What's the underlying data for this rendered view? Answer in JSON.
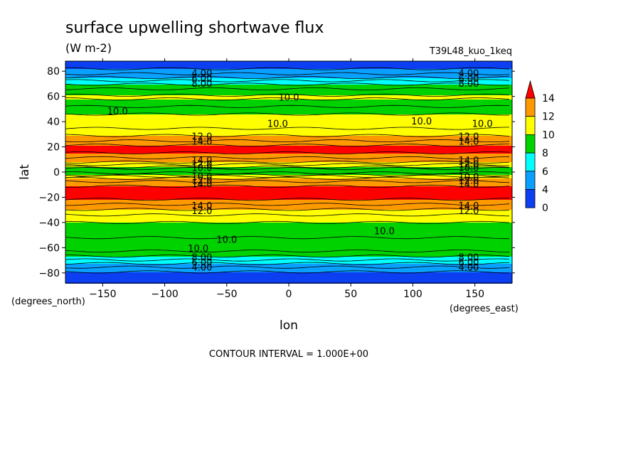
{
  "colors": {
    "band_0_4": "#0c3ff2",
    "band_4_6": "#0aa0ff",
    "band_6_8": "#00ffff",
    "band_8_10": "#00d200",
    "band_10_12": "#ffff00",
    "band_12_14": "#ff9900",
    "band_14_up": "#ff0000",
    "contour_line": "#000000"
  },
  "chart_data": {
    "type": "heatmap",
    "title": "surface upwelling shortwave flux",
    "units": "(W m-2)",
    "run_label": "T39L48_kuo_1keq",
    "xlabel": "lon",
    "ylabel": "lat",
    "x_units_note": "(degrees_east)",
    "y_units_note": "(degrees_north)",
    "footer": "CONTOUR INTERVAL = 1.000E+00",
    "xlim": [
      -180,
      180
    ],
    "ylim": [
      -88,
      88
    ],
    "x_ticks": [
      -150,
      -100,
      -50,
      0,
      50,
      100,
      150
    ],
    "y_ticks": [
      80,
      60,
      40,
      20,
      0,
      -20,
      -40,
      -60,
      -80
    ],
    "colorbar": {
      "levels": [
        0,
        4,
        6,
        8,
        10,
        12,
        14
      ],
      "labels": [
        "14",
        "12",
        "10",
        "8",
        "6",
        "4",
        "0"
      ],
      "extend": "max"
    },
    "zonal_profile": {
      "lat": [
        88,
        84,
        80,
        76,
        72,
        68,
        64,
        60,
        56,
        52,
        48,
        44,
        40,
        36,
        32,
        28,
        24,
        20,
        16,
        12,
        8,
        4,
        2,
        0,
        -2,
        -4,
        -8,
        -12,
        -16,
        -20,
        -24,
        -28,
        -32,
        -36,
        -40,
        -44,
        -48,
        -52,
        -56,
        -60,
        -64,
        -68,
        -72,
        -76,
        -80,
        -84,
        -88
      ],
      "flux": [
        3.0,
        3.6,
        4.4,
        5.6,
        7.2,
        8.6,
        9.4,
        10.2,
        9.8,
        9.0,
        9.6,
        10.4,
        10.4,
        10.8,
        11.4,
        12.2,
        13.2,
        14.4,
        14.2,
        13.2,
        12.0,
        10.0,
        8.4,
        8.6,
        9.8,
        11.6,
        13.2,
        14.2,
        14.8,
        14.4,
        13.4,
        12.4,
        11.4,
        10.6,
        10.0,
        9.6,
        9.8,
        10.0,
        9.6,
        9.4,
        8.8,
        7.6,
        6.2,
        4.8,
        3.8,
        3.4,
        3.2
      ]
    },
    "contour_labels": [
      {
        "text": "4.00",
        "lon": -70,
        "lat": 78
      },
      {
        "text": "6.00",
        "lon": -70,
        "lat": 74
      },
      {
        "text": "8.00",
        "lon": -70,
        "lat": 70
      },
      {
        "text": "4.00",
        "lon": 145,
        "lat": 78
      },
      {
        "text": "6.00",
        "lon": 145,
        "lat": 74
      },
      {
        "text": "8.00",
        "lon": 145,
        "lat": 70
      },
      {
        "text": "10.0",
        "lon": -138,
        "lat": 48
      },
      {
        "text": "10.0",
        "lon": 0,
        "lat": 59
      },
      {
        "text": "10.0",
        "lon": -9,
        "lat": 38
      },
      {
        "text": "10.0",
        "lon": 107,
        "lat": 40
      },
      {
        "text": "10.0",
        "lon": 156,
        "lat": 38
      },
      {
        "text": "12.0",
        "lon": -70,
        "lat": 28
      },
      {
        "text": "14.0",
        "lon": -70,
        "lat": 24
      },
      {
        "text": "12.0",
        "lon": 145,
        "lat": 28
      },
      {
        "text": "14.0",
        "lon": 145,
        "lat": 24
      },
      {
        "text": "14.0",
        "lon": -70,
        "lat": 9
      },
      {
        "text": "12.0",
        "lon": -70,
        "lat": 6
      },
      {
        "text": "10.0",
        "lon": -70,
        "lat": 3
      },
      {
        "text": "10.0",
        "lon": -70,
        "lat": -4
      },
      {
        "text": "12.0",
        "lon": -70,
        "lat": -7
      },
      {
        "text": "14.0",
        "lon": -70,
        "lat": -10
      },
      {
        "text": "14.0",
        "lon": 145,
        "lat": 9
      },
      {
        "text": "12.0",
        "lon": 145,
        "lat": 6
      },
      {
        "text": "10.0",
        "lon": 145,
        "lat": 3
      },
      {
        "text": "10.0",
        "lon": 145,
        "lat": -4
      },
      {
        "text": "12.0",
        "lon": 145,
        "lat": -7
      },
      {
        "text": "14.0",
        "lon": 145,
        "lat": -10
      },
      {
        "text": "14.0",
        "lon": -70,
        "lat": -27
      },
      {
        "text": "12.0",
        "lon": -70,
        "lat": -31
      },
      {
        "text": "14.0",
        "lon": 145,
        "lat": -27
      },
      {
        "text": "12.0",
        "lon": 145,
        "lat": -31
      },
      {
        "text": "10.0",
        "lon": -50,
        "lat": -54
      },
      {
        "text": "10.0",
        "lon": -73,
        "lat": -61
      },
      {
        "text": "10.0",
        "lon": 77,
        "lat": -47
      },
      {
        "text": "8.00",
        "lon": -70,
        "lat": -68
      },
      {
        "text": "6.00",
        "lon": -70,
        "lat": -72
      },
      {
        "text": "4.00",
        "lon": -70,
        "lat": -76
      },
      {
        "text": "8.00",
        "lon": 145,
        "lat": -68
      },
      {
        "text": "6.00",
        "lon": 145,
        "lat": -72
      },
      {
        "text": "4.00",
        "lon": 145,
        "lat": -76
      }
    ]
  }
}
